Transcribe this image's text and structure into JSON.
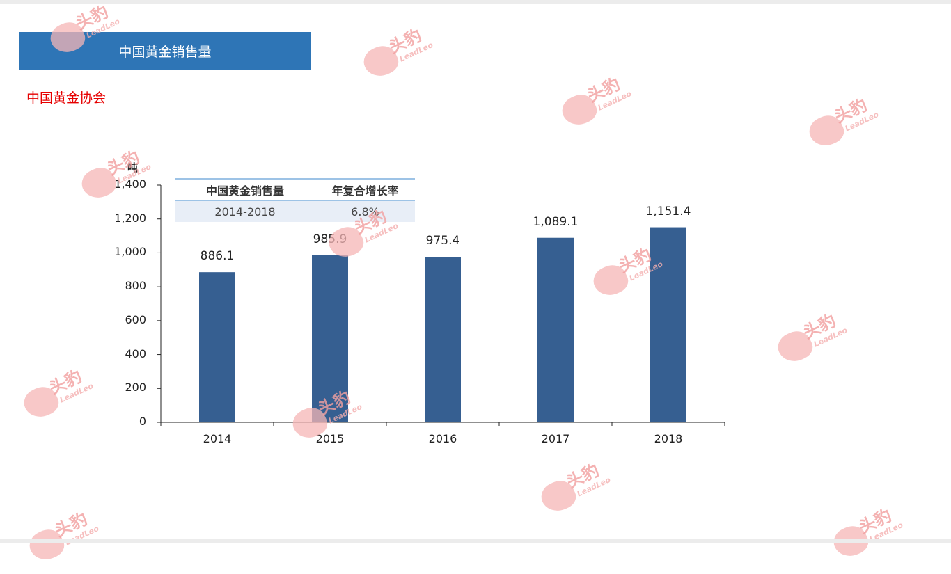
{
  "banner": {
    "title": "中国黄金销售量"
  },
  "source": {
    "label": "中国黄金协会"
  },
  "table": {
    "headers": [
      "中国黄金销售量",
      "年复合增长率"
    ],
    "row": [
      "2014-2018",
      "6.8%"
    ]
  },
  "watermark": {
    "cn": "头豹",
    "en": "LeadLeo"
  },
  "colors": {
    "bar": "#365f91",
    "banner": "#2e75b6",
    "source": "#e60000"
  },
  "chart_data": {
    "type": "bar",
    "ylabel": "吨",
    "categories": [
      "2014",
      "2015",
      "2016",
      "2017",
      "2018"
    ],
    "values": [
      886.1,
      985.9,
      975.4,
      1089.1,
      1151.4
    ],
    "value_labels": [
      "886.1",
      "985.9",
      "975.4",
      "1,089.1",
      "1,151.4"
    ],
    "yticks": [
      "0",
      "200",
      "400",
      "600",
      "800",
      "1,000",
      "1,200",
      "1,400"
    ],
    "ylim": [
      0,
      1400
    ],
    "grid": false,
    "legend": "none"
  }
}
